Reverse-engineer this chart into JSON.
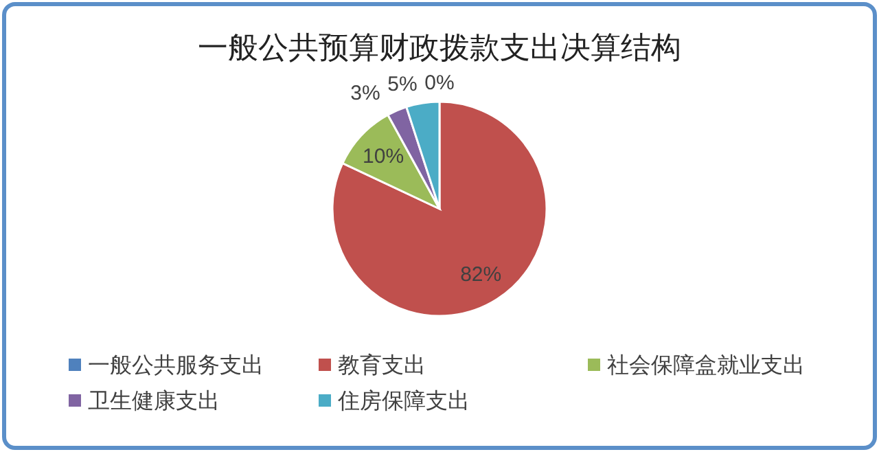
{
  "chart_data": {
    "type": "pie",
    "title": "一般公共预算财政拨款支出决算结构",
    "categories": [
      "一般公共服务支出",
      "教育支出",
      "社会保障盒就业支出",
      "卫生健康支出",
      "住房保障支出"
    ],
    "values": [
      0,
      82,
      10,
      3,
      5
    ],
    "colors": [
      "#4f81bd",
      "#c0504d",
      "#9bbb59",
      "#8064a2",
      "#4bacc6"
    ],
    "value_labels": [
      "0%",
      "82%",
      "10%",
      "3%",
      "5%"
    ],
    "legend": "bottom"
  }
}
